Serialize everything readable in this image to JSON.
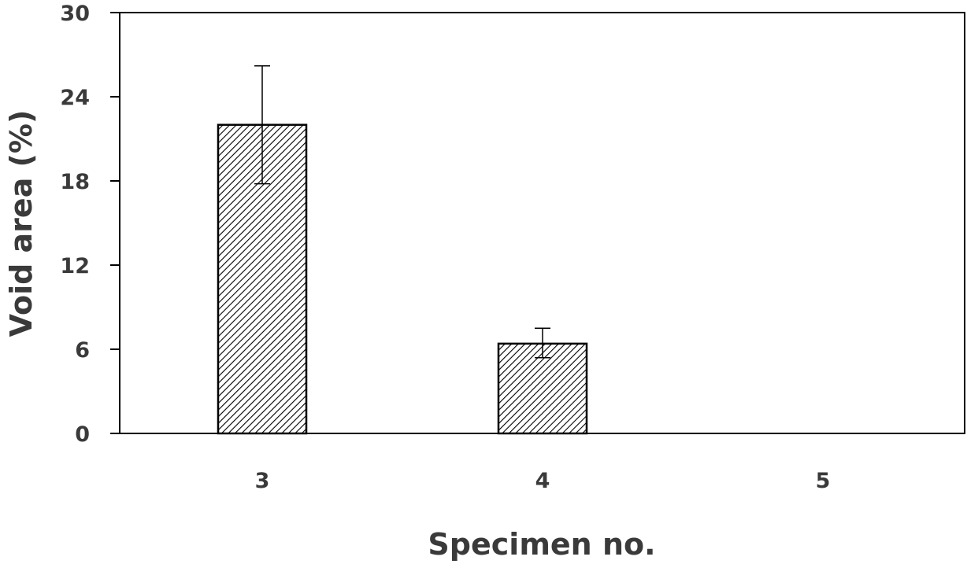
{
  "chart_data": {
    "type": "bar",
    "title": "",
    "xlabel": "Specimen no.",
    "ylabel": "Void area (%)",
    "categories": [
      "3",
      "4",
      "5"
    ],
    "values": [
      22.0,
      6.4,
      0
    ],
    "error_upper": [
      4.2,
      1.1,
      0
    ],
    "error_lower": [
      4.2,
      1.0,
      0
    ],
    "ylim": [
      0,
      30
    ],
    "yticks": [
      "0",
      "6",
      "12",
      "18",
      "24",
      "30"
    ],
    "grid": false,
    "legend": "none",
    "bar_fill": "diagonal-hatch",
    "colors": {
      "bar_stroke": "#000000",
      "hatch": "#000000",
      "axis": "#000000",
      "text": "#3a3a3a"
    }
  }
}
